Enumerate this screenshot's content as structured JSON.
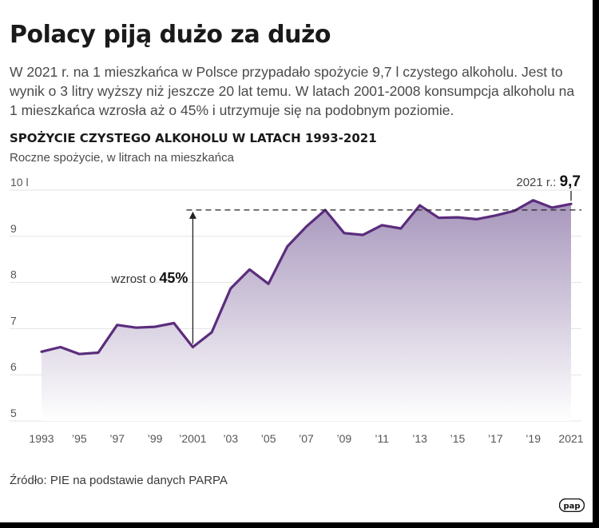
{
  "header": {
    "title": "Polacy piją dużo za dużo",
    "lead": "W 2021 r. na 1 mieszkańca w Polsce przypadało spożycie 9,7 l czystego alkoholu. Jest to wynik o 3 litry wyższy niż jeszcze 20 lat temu. W latach 2001-2008 konsumpcja alkoholu na 1 mieszkańca wzrosła aż o 45% i utrzymuje się na podobnym poziomie."
  },
  "chart_data": {
    "type": "area",
    "title": "SPOŻYCIE CZYSTEGO ALKOHOLU W LATACH 1993-2021",
    "subtitle": "Roczne spożycie, w litrach na mieszkańca",
    "x": [
      1993,
      1994,
      1995,
      1996,
      1997,
      1998,
      1999,
      2000,
      2001,
      2002,
      2003,
      2004,
      2005,
      2006,
      2007,
      2008,
      2009,
      2010,
      2011,
      2012,
      2013,
      2014,
      2015,
      2016,
      2017,
      2018,
      2019,
      2020,
      2021
    ],
    "values": [
      6.5,
      6.6,
      6.45,
      6.48,
      7.08,
      7.02,
      7.04,
      7.12,
      6.6,
      6.92,
      7.87,
      8.28,
      7.97,
      8.78,
      9.21,
      9.57,
      9.07,
      9.03,
      9.24,
      9.17,
      9.67,
      9.4,
      9.41,
      9.37,
      9.45,
      9.55,
      9.78,
      9.62,
      9.7
    ],
    "x_tick_labels": [
      "1993",
      "’95",
      "’97",
      "’99",
      "’2001",
      "’03",
      "’05",
      "’07",
      "’09",
      "’11",
      "’13",
      "’15",
      "’17",
      "’19",
      "2021"
    ],
    "y_tick_labels": [
      "10 l",
      "9",
      "8",
      "7",
      "6",
      "5"
    ],
    "y_ticks": [
      10,
      9,
      8,
      7,
      6,
      5
    ],
    "ylim": [
      5,
      10
    ],
    "xlim": [
      1993,
      2021
    ],
    "grid": true,
    "reference_line_value": 9.57,
    "growth_annotation": {
      "prefix": "wzrost o ",
      "value": "45%",
      "from_year": 2001,
      "to_value": 9.57
    },
    "end_annotation": {
      "label": "2021 r.: ",
      "value": "9,7"
    },
    "colors": {
      "line": "#5b2d7d",
      "area_top": "#a796bc",
      "area_bottom": "#ffffff",
      "grid": "#e3e3e3",
      "reference": "#222222"
    }
  },
  "footer": {
    "source": "Źródło: PIE na podstawie danych PARPA",
    "logo_text": "pap"
  }
}
